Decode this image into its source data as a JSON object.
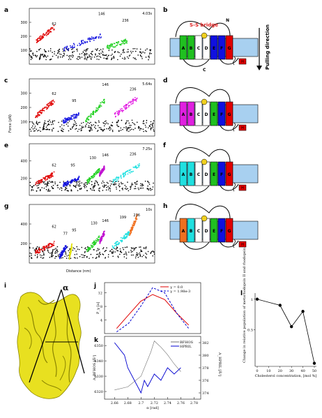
{
  "panel_labels": [
    "a",
    "b",
    "c",
    "d",
    "e",
    "f",
    "g",
    "h",
    "i",
    "j",
    "k",
    "l"
  ],
  "force_traces": {
    "ylabel": "Force (pN)",
    "xlabel": "Distance (nm)",
    "panels": [
      {
        "id": "a",
        "time": "4.03s",
        "yticks": [
          "100",
          "200",
          "300"
        ],
        "peaks": [
          "62",
          "146",
          "236"
        ],
        "segments": [
          {
            "color": "#e00000",
            "x0": 0.05,
            "x1": 0.2,
            "y0": 0.4,
            "y1": 0.66
          },
          {
            "color": "#1010e0",
            "x0": 0.27,
            "x1": 0.58,
            "y0": 0.26,
            "y1": 0.52
          },
          {
            "color": "#20d020",
            "x0": 0.62,
            "x1": 0.78,
            "y0": 0.3,
            "y1": 0.42
          }
        ]
      },
      {
        "id": "c",
        "time": "5.64s",
        "yticks": [
          "100",
          "200",
          "300"
        ],
        "peaks": [
          "62",
          "95",
          "146",
          "236"
        ],
        "segments": [
          {
            "color": "#e00000",
            "x0": 0.05,
            "x1": 0.2,
            "y0": 0.34,
            "y1": 0.62
          },
          {
            "color": "#1010e0",
            "x0": 0.27,
            "x1": 0.4,
            "y0": 0.26,
            "y1": 0.38
          },
          {
            "color": "#20d020",
            "x0": 0.45,
            "x1": 0.6,
            "y0": 0.26,
            "y1": 0.62
          },
          {
            "color": "#e010e0",
            "x0": 0.68,
            "x1": 0.86,
            "y0": 0.36,
            "y1": 0.66
          }
        ]
      },
      {
        "id": "e",
        "time": "7.25s",
        "yticks": [
          "200",
          "400"
        ],
        "peaks": [
          "62",
          "95",
          "130",
          "146",
          "236"
        ],
        "segments": [
          {
            "color": "#e00000",
            "x0": 0.05,
            "x1": 0.2,
            "y0": 0.22,
            "y1": 0.42
          },
          {
            "color": "#1010e0",
            "x0": 0.27,
            "x1": 0.4,
            "y0": 0.2,
            "y1": 0.34
          },
          {
            "color": "#20d020",
            "x0": 0.46,
            "x1": 0.56,
            "y0": 0.26,
            "y1": 0.5
          },
          {
            "color": "#c010d0",
            "x0": 0.56,
            "x1": 0.6,
            "y0": 0.4,
            "y1": 0.54
          },
          {
            "color": "#20e0e0",
            "x0": 0.66,
            "x1": 0.88,
            "y0": 0.26,
            "y1": 0.58
          }
        ]
      },
      {
        "id": "g",
        "time": "10s",
        "yticks": [
          "200",
          "400"
        ],
        "peaks": [
          "62",
          "77",
          "95",
          "130",
          "146",
          "199",
          "236"
        ],
        "segments": [
          {
            "color": "#e00000",
            "x0": 0.05,
            "x1": 0.2,
            "y0": 0.18,
            "y1": 0.34
          },
          {
            "color": "#1010e0",
            "x0": 0.24,
            "x1": 0.3,
            "y0": 0.1,
            "y1": 0.3
          },
          {
            "color": "#e0e000",
            "x0": 0.32,
            "x1": 0.34,
            "y0": 0.1,
            "y1": 0.3
          },
          {
            "color": "#20d020",
            "x0": 0.46,
            "x1": 0.56,
            "y0": 0.2,
            "y1": 0.44
          },
          {
            "color": "#c010d0",
            "x0": 0.56,
            "x1": 0.6,
            "y0": 0.36,
            "y1": 0.52
          },
          {
            "color": "#20e0e0",
            "x0": 0.66,
            "x1": 0.8,
            "y0": 0.26,
            "y1": 0.52
          },
          {
            "color": "#f07020",
            "x0": 0.8,
            "x1": 0.86,
            "y0": 0.5,
            "y1": 0.8
          }
        ]
      }
    ]
  },
  "topology": {
    "n_label": "N",
    "c_label": "C",
    "ss_label": "S-S bridge",
    "pull_label": "Pulling direction",
    "panels": [
      {
        "id": "b",
        "colors": [
          "#20c020",
          "#20c020",
          "#fff",
          "#fff",
          "#1010e0",
          "#1010e0",
          "#e00000"
        ],
        "text": [
          "A",
          "B",
          "C",
          "D",
          "E",
          "F",
          "G"
        ]
      },
      {
        "id": "d",
        "colors": [
          "#e020e0",
          "#e020e0",
          "#fff",
          "#fff",
          "#20c020",
          "#1010e0",
          "#e00000"
        ],
        "text": [
          "A",
          "B",
          "C",
          "D",
          "E",
          "F",
          "G"
        ]
      },
      {
        "id": "f",
        "colors": [
          "#20e0e0",
          "#20e0e0",
          "#fff",
          "#fff",
          "#20c020",
          "#1010e0",
          "#e00000"
        ],
        "text": [
          "A",
          "B",
          "C",
          "D",
          "E",
          "F",
          "G"
        ]
      },
      {
        "id": "h",
        "colors": [
          "#f07020",
          "#20e0e0",
          "#fff",
          "#fff",
          "#20c020",
          "#1010e0",
          "#e00000"
        ],
        "text": [
          "A",
          "B",
          "C",
          "D",
          "E",
          "F",
          "G"
        ]
      }
    ],
    "h_label": "H"
  },
  "structure": {
    "alpha_label": "α"
  },
  "chart_data": [
    {
      "panel": "j",
      "type": "line",
      "ylabel": "P_γ [a]",
      "yticks": [
        "4",
        "8",
        "12"
      ],
      "series": [
        {
          "name": "γ = 0.0",
          "color": "#e00000",
          "dash": false,
          "x": [
            2.66,
            2.68,
            2.7,
            2.72,
            2.74,
            2.76,
            2.78
          ],
          "y": [
            1.5,
            5.5,
            9.5,
            11.5,
            10,
            6,
            2.5
          ]
        },
        {
          "name": "γ = 1.98e-3",
          "color": "#0000d0",
          "dash": true,
          "x": [
            2.66,
            2.68,
            2.7,
            2.72,
            2.74,
            2.76,
            2.78
          ],
          "y": [
            0.5,
            3,
            8,
            13.5,
            12,
            6,
            1.5
          ]
        }
      ]
    },
    {
      "panel": "k",
      "type": "line",
      "xlabel": "α [rad]",
      "ylabel_left": "A_BFHOS [Å²]",
      "ylabel_right": "A_HPRIL [Å²]",
      "xticks": [
        "2.66",
        "2.68",
        "2.7",
        "2.72",
        "2.74",
        "2.76",
        "2.78"
      ],
      "yticks_left": [
        "6320",
        "6330",
        "6340",
        "6350"
      ],
      "yticks_right": [
        "374",
        "376",
        "378",
        "380",
        "382"
      ],
      "series": [
        {
          "name": "BFHOS",
          "color": "#707070",
          "x": [
            2.66,
            2.68,
            2.7,
            2.715,
            2.72,
            2.73,
            2.74,
            2.75,
            2.76
          ],
          "y": [
            6321,
            6323,
            6330,
            6346,
            6353,
            6349,
            6344,
            6338,
            6333
          ]
        },
        {
          "name": "HPRIL",
          "color": "#0000d0",
          "x": [
            2.66,
            2.675,
            2.68,
            2.69,
            2.7,
            2.705,
            2.71,
            2.72,
            2.73,
            2.74,
            2.75,
            2.76
          ],
          "y": [
            382,
            380,
            378,
            376,
            374,
            376,
            375,
            377,
            376,
            378,
            377,
            378
          ]
        }
      ]
    },
    {
      "panel": "l",
      "type": "line",
      "xlabel": "Cholesterol concentration, [mol %]",
      "ylabel": "Change in relative population of metarhodopsin II and rhodopsin",
      "xticks": [
        "0",
        "10",
        "20",
        "30",
        "40",
        "50"
      ],
      "yticks": [
        "0.5",
        "1"
      ],
      "series": [
        {
          "name": "",
          "color": "#000",
          "x": [
            0,
            20,
            30,
            40,
            50
          ],
          "y": [
            1.0,
            0.9,
            0.55,
            0.8,
            -0.05
          ]
        }
      ]
    }
  ]
}
